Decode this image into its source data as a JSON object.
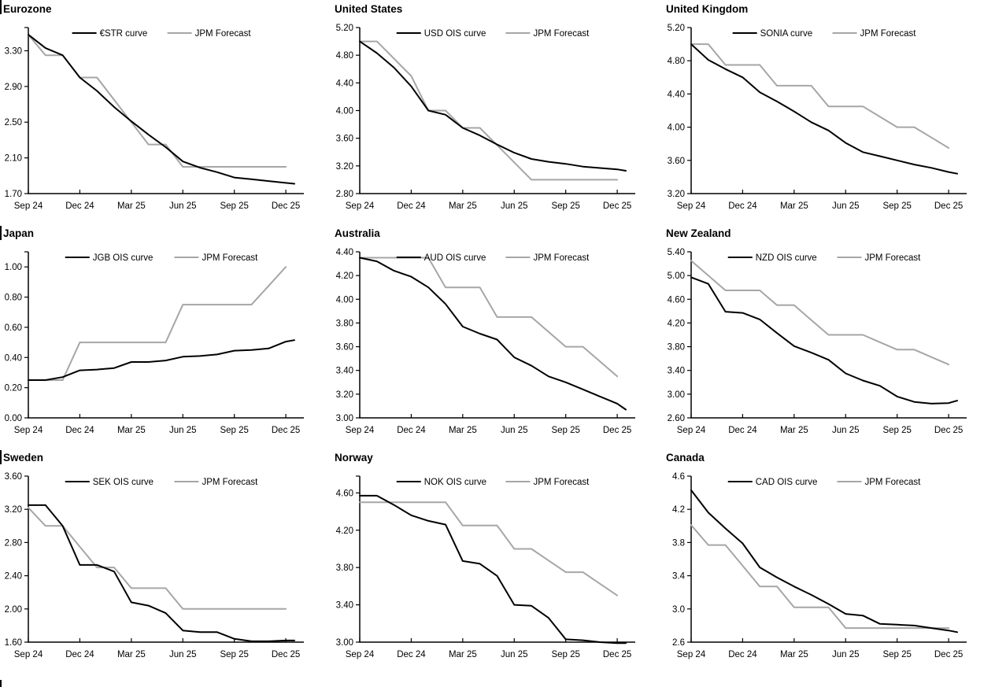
{
  "page": {
    "description": "Policy rate OIS curves vs JPM forecasts, nine economies",
    "background": "#ffffff"
  },
  "colors": {
    "curve": "#000000",
    "forecast": "#a6a6a6",
    "axis": "#000000"
  },
  "chart_data": [
    {
      "type": "line",
      "title": "Eurozone",
      "x_ticks": [
        "Sep 24",
        "Dec 24",
        "Mar 25",
        "Jun 25",
        "Sep 25",
        "Dec 25"
      ],
      "x_unit": "months from Sep 2024, tick every 3 months",
      "y_axis": {
        "min": 1.7,
        "max_tick": 3.3,
        "step": 0.4,
        "spine_top": 3.56,
        "decimals": 2
      },
      "legend_position": "top-center",
      "series": [
        {
          "key": "curve",
          "name": "€STR curve",
          "color": "#000000",
          "x": [
            0,
            1,
            2,
            3,
            4,
            5,
            6,
            7,
            8,
            9,
            10,
            11,
            12,
            13,
            14,
            15,
            15.5
          ],
          "values": [
            3.48,
            3.33,
            3.25,
            3.0,
            2.85,
            2.67,
            2.51,
            2.36,
            2.22,
            2.06,
            1.99,
            1.94,
            1.88,
            1.86,
            1.84,
            1.82,
            1.81
          ]
        },
        {
          "key": "forecast",
          "name": "JPM Forecast",
          "color": "#a6a6a6",
          "x": [
            0,
            1,
            2,
            3,
            4,
            5,
            6,
            7,
            8,
            9,
            10,
            11,
            12,
            13,
            14,
            15
          ],
          "values": [
            3.48,
            3.25,
            3.25,
            3.0,
            3.0,
            2.75,
            2.5,
            2.25,
            2.25,
            2.0,
            2.0,
            2.0,
            2.0,
            2.0,
            2.0,
            2.0
          ]
        }
      ]
    },
    {
      "type": "line",
      "title": "United States",
      "x_ticks": [
        "Sep 24",
        "Dec 24",
        "Mar 25",
        "Jun 25",
        "Sep 25",
        "Dec 25"
      ],
      "x_unit": "months from Sep 2024, tick every 3 months",
      "y_axis": {
        "min": 2.8,
        "max_tick": 5.2,
        "step": 0.4,
        "spine_top": 5.2,
        "decimals": 2
      },
      "legend_position": "top-center",
      "series": [
        {
          "key": "curve",
          "name": "USD OIS curve",
          "color": "#000000",
          "x": [
            0,
            1,
            2,
            3,
            4,
            5,
            6,
            7,
            8,
            9,
            10,
            11,
            12,
            13,
            14,
            15,
            15.5
          ],
          "values": [
            5.0,
            4.83,
            4.62,
            4.35,
            4.0,
            3.94,
            3.75,
            3.64,
            3.51,
            3.39,
            3.3,
            3.26,
            3.23,
            3.19,
            3.17,
            3.15,
            3.13
          ]
        },
        {
          "key": "forecast",
          "name": "JPM Forecast",
          "color": "#a6a6a6",
          "x": [
            0,
            1,
            2,
            3,
            4,
            5,
            6,
            7,
            8,
            9,
            10,
            11,
            12,
            13,
            14,
            15
          ],
          "values": [
            5.0,
            5.0,
            4.75,
            4.5,
            4.0,
            4.0,
            3.75,
            3.75,
            3.5,
            3.25,
            3.0,
            3.0,
            3.0,
            3.0,
            3.0,
            3.0
          ]
        }
      ]
    },
    {
      "type": "line",
      "title": "United Kingdom",
      "x_ticks": [
        "Sep 24",
        "Dec 24",
        "Mar 25",
        "Jun 25",
        "Sep 25",
        "Dec 25"
      ],
      "x_unit": "months from Sep 2024, tick every 3 months",
      "y_axis": {
        "min": 3.2,
        "max_tick": 5.2,
        "step": 0.4,
        "spine_top": 5.2,
        "decimals": 2
      },
      "legend_position": "top-center",
      "series": [
        {
          "key": "curve",
          "name": "SONIA curve",
          "color": "#000000",
          "x": [
            0,
            1,
            2,
            3,
            4,
            5,
            6,
            7,
            8,
            9,
            10,
            11,
            12,
            13,
            14,
            15,
            15.5
          ],
          "values": [
            5.0,
            4.81,
            4.7,
            4.6,
            4.42,
            4.31,
            4.19,
            4.06,
            3.96,
            3.81,
            3.7,
            3.65,
            3.6,
            3.55,
            3.51,
            3.46,
            3.44
          ]
        },
        {
          "key": "forecast",
          "name": "JPM Forecast",
          "color": "#a6a6a6",
          "x": [
            0,
            1,
            2,
            3,
            4,
            5,
            6,
            7,
            8,
            9,
            10,
            11,
            12,
            13,
            14,
            15
          ],
          "values": [
            5.0,
            5.0,
            4.75,
            4.75,
            4.75,
            4.5,
            4.5,
            4.5,
            4.25,
            4.25,
            4.25,
            4.125,
            4.0,
            4.0,
            3.875,
            3.75
          ]
        }
      ]
    },
    {
      "type": "line",
      "title": "Japan",
      "x_ticks": [
        "Sep 24",
        "Dec 24",
        "Mar 25",
        "Jun 25",
        "Sep 25",
        "Dec 25"
      ],
      "x_unit": "months from Sep 2024, tick every 3 months",
      "y_axis": {
        "min": 0.0,
        "max_tick": 1.0,
        "step": 0.2,
        "spine_top": 1.1,
        "decimals": 2
      },
      "legend_position": "top-center",
      "series": [
        {
          "key": "curve",
          "name": "JGB OIS curve",
          "color": "#000000",
          "x": [
            0,
            1,
            2,
            3,
            4,
            5,
            6,
            7,
            8,
            9,
            10,
            11,
            12,
            13,
            14,
            15,
            15.5
          ],
          "values": [
            0.25,
            0.25,
            0.27,
            0.315,
            0.32,
            0.33,
            0.37,
            0.37,
            0.38,
            0.405,
            0.41,
            0.42,
            0.445,
            0.45,
            0.46,
            0.505,
            0.515
          ]
        },
        {
          "key": "forecast",
          "name": "JPM Forecast",
          "color": "#a6a6a6",
          "x": [
            0,
            1,
            2,
            3,
            4,
            5,
            6,
            7,
            8,
            9,
            10,
            11,
            12,
            13,
            14,
            15
          ],
          "values": [
            0.25,
            0.25,
            0.25,
            0.5,
            0.5,
            0.5,
            0.5,
            0.5,
            0.5,
            0.75,
            0.75,
            0.75,
            0.75,
            0.75,
            0.875,
            1.0
          ]
        }
      ]
    },
    {
      "type": "line",
      "title": "Australia",
      "x_ticks": [
        "Sep 24",
        "Dec 24",
        "Mar 25",
        "Jun 25",
        "Sep 25",
        "Dec 25"
      ],
      "x_unit": "months from Sep 2024, tick every 3 months",
      "y_axis": {
        "min": 3.0,
        "max_tick": 4.4,
        "step": 0.2,
        "spine_top": 4.4,
        "decimals": 2
      },
      "legend_position": "top-center",
      "series": [
        {
          "key": "curve",
          "name": "AUD OIS curve",
          "color": "#000000",
          "x": [
            0,
            1,
            2,
            3,
            4,
            5,
            6,
            7,
            8,
            9,
            10,
            11,
            12,
            13,
            14,
            15,
            15.5
          ],
          "values": [
            4.35,
            4.32,
            4.24,
            4.19,
            4.1,
            3.96,
            3.77,
            3.71,
            3.66,
            3.51,
            3.44,
            3.35,
            3.3,
            3.24,
            3.18,
            3.12,
            3.07
          ]
        },
        {
          "key": "forecast",
          "name": "JPM Forecast",
          "color": "#a6a6a6",
          "x": [
            0,
            1,
            2,
            3,
            4,
            5,
            6,
            7,
            8,
            9,
            10,
            11,
            12,
            13,
            14,
            15
          ],
          "values": [
            4.35,
            4.35,
            4.35,
            4.35,
            4.35,
            4.1,
            4.1,
            4.1,
            3.85,
            3.85,
            3.85,
            3.725,
            3.6,
            3.6,
            3.475,
            3.35
          ]
        }
      ]
    },
    {
      "type": "line",
      "title": "New Zealand",
      "x_ticks": [
        "Sep 24",
        "Dec 24",
        "Mar 25",
        "Jun 25",
        "Sep 25",
        "Dec 25"
      ],
      "x_unit": "months from Sep 2024, tick every 3 months",
      "y_axis": {
        "min": 2.6,
        "max_tick": 5.4,
        "step": 0.4,
        "spine_top": 5.4,
        "decimals": 2
      },
      "legend_position": "top-center",
      "series": [
        {
          "key": "curve",
          "name": "NZD OIS curve",
          "color": "#000000",
          "x": [
            0,
            1,
            2,
            3,
            4,
            5,
            6,
            7,
            8,
            9,
            10,
            11,
            12,
            13,
            14,
            15,
            15.5
          ],
          "values": [
            4.97,
            4.86,
            4.39,
            4.37,
            4.26,
            4.03,
            3.81,
            3.7,
            3.58,
            3.35,
            3.23,
            3.14,
            2.96,
            2.87,
            2.84,
            2.85,
            2.89
          ]
        },
        {
          "key": "forecast",
          "name": "JPM Forecast",
          "color": "#a6a6a6",
          "x": [
            0,
            1,
            2,
            3,
            4,
            5,
            6,
            7,
            8,
            9,
            10,
            11,
            12,
            13,
            14,
            15
          ],
          "values": [
            5.25,
            5.0,
            4.75,
            4.75,
            4.75,
            4.5,
            4.5,
            4.25,
            4.0,
            4.0,
            4.0,
            3.875,
            3.75,
            3.75,
            3.625,
            3.5
          ]
        }
      ]
    },
    {
      "type": "line",
      "title": "Sweden",
      "x_ticks": [
        "Sep 24",
        "Dec 24",
        "Mar 25",
        "Jun 25",
        "Sep 25",
        "Dec 25"
      ],
      "x_unit": "months from Sep 2024, tick every 3 months",
      "y_axis": {
        "min": 1.6,
        "max_tick": 3.6,
        "step": 0.4,
        "spine_top": 3.6,
        "decimals": 2
      },
      "legend_position": "top-center",
      "series": [
        {
          "key": "curve",
          "name": "SEK OIS curve",
          "color": "#000000",
          "x": [
            0,
            1,
            2,
            3,
            4,
            5,
            6,
            7,
            8,
            9,
            10,
            11,
            12,
            13,
            14,
            15,
            15.5
          ],
          "values": [
            3.25,
            3.25,
            3.0,
            2.53,
            2.53,
            2.45,
            2.08,
            2.04,
            1.95,
            1.74,
            1.72,
            1.72,
            1.64,
            1.61,
            1.61,
            1.62,
            1.62
          ]
        },
        {
          "key": "forecast",
          "name": "JPM Forecast",
          "color": "#a6a6a6",
          "x": [
            0,
            1,
            2,
            3,
            4,
            5,
            6,
            7,
            8,
            9,
            10,
            11,
            12,
            13,
            14,
            15
          ],
          "values": [
            3.22,
            3.0,
            3.0,
            2.75,
            2.5,
            2.5,
            2.25,
            2.25,
            2.25,
            2.0,
            2.0,
            2.0,
            2.0,
            2.0,
            2.0,
            2.0
          ]
        }
      ]
    },
    {
      "type": "line",
      "title": "Norway",
      "x_ticks": [
        "Sep 24",
        "Dec 24",
        "Mar 25",
        "Jun 25",
        "Sep 25",
        "Dec 25"
      ],
      "x_unit": "months from Sep 2024, tick every 3 months",
      "y_axis": {
        "min": 3.0,
        "max_tick": 4.6,
        "step": 0.4,
        "spine_top": 4.78,
        "decimals": 2
      },
      "legend_position": "top-center",
      "series": [
        {
          "key": "curve",
          "name": "NOK OIS curve",
          "color": "#000000",
          "x": [
            0,
            1,
            2,
            3,
            4,
            5,
            6,
            7,
            8,
            9,
            10,
            11,
            12,
            13,
            14,
            15,
            15.5
          ],
          "values": [
            4.57,
            4.57,
            4.47,
            4.36,
            4.3,
            4.26,
            3.87,
            3.84,
            3.71,
            3.4,
            3.39,
            3.26,
            3.03,
            3.02,
            3.0,
            2.99,
            2.99
          ]
        },
        {
          "key": "forecast",
          "name": "JPM Forecast",
          "color": "#a6a6a6",
          "x": [
            0,
            1,
            2,
            3,
            4,
            5,
            6,
            7,
            8,
            9,
            10,
            11,
            12,
            13,
            14,
            15
          ],
          "values": [
            4.5,
            4.5,
            4.5,
            4.5,
            4.5,
            4.5,
            4.25,
            4.25,
            4.25,
            4.0,
            4.0,
            3.875,
            3.75,
            3.75,
            3.625,
            3.5
          ]
        }
      ]
    },
    {
      "type": "line",
      "title": "Canada",
      "x_ticks": [
        "Sep 24",
        "Dec 24",
        "Mar 25",
        "Jun 25",
        "Sep 25",
        "Dec 25"
      ],
      "x_unit": "months from Sep 2024, tick every 3 months",
      "y_axis": {
        "min": 2.6,
        "max_tick": 4.6,
        "step": 0.4,
        "spine_top": 4.6,
        "decimals": 1
      },
      "legend_position": "top-center",
      "series": [
        {
          "key": "curve",
          "name": "CAD OIS curve",
          "color": "#000000",
          "x": [
            0,
            1,
            2,
            3,
            4,
            5,
            6,
            7,
            8,
            9,
            10,
            11,
            12,
            13,
            14,
            15,
            15.5
          ],
          "values": [
            4.43,
            4.16,
            3.97,
            3.79,
            3.5,
            3.38,
            3.27,
            3.17,
            3.06,
            2.94,
            2.92,
            2.82,
            2.81,
            2.8,
            2.77,
            2.74,
            2.72
          ]
        },
        {
          "key": "forecast",
          "name": "JPM Forecast",
          "color": "#a6a6a6",
          "x": [
            0,
            1,
            2,
            3,
            4,
            5,
            6,
            7,
            8,
            9,
            10,
            11,
            12,
            13,
            14,
            15
          ],
          "values": [
            4.01,
            3.77,
            3.77,
            3.52,
            3.27,
            3.27,
            3.02,
            3.02,
            3.02,
            2.77,
            2.77,
            2.77,
            2.77,
            2.77,
            2.77,
            2.77
          ]
        }
      ]
    }
  ]
}
